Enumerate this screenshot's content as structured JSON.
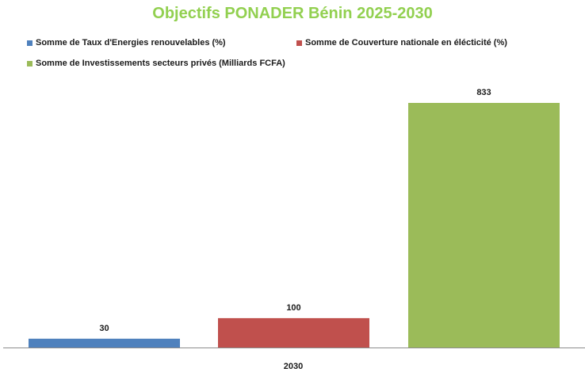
{
  "chart_data": {
    "type": "bar",
    "title": "Objectifs PONADER Bénin 2025-2030",
    "categories": [
      "2030"
    ],
    "series": [
      {
        "name": "Somme de Taux d'Energies renouvelables (%)",
        "values": [
          30
        ],
        "color": "#4f81bd"
      },
      {
        "name": "Somme de Couverture nationale  en élécticité (%)",
        "values": [
          100
        ],
        "color": "#c0504d"
      },
      {
        "name": "Somme de Investissements secteurs privés (Milliards  FCFA)",
        "values": [
          833
        ],
        "color": "#9bbb59"
      }
    ],
    "data_labels": [
      "30",
      "100",
      "833"
    ],
    "ylim": [
      0,
      1000
    ],
    "grid": false,
    "legend_position": "top",
    "title_color": "#92d050"
  }
}
